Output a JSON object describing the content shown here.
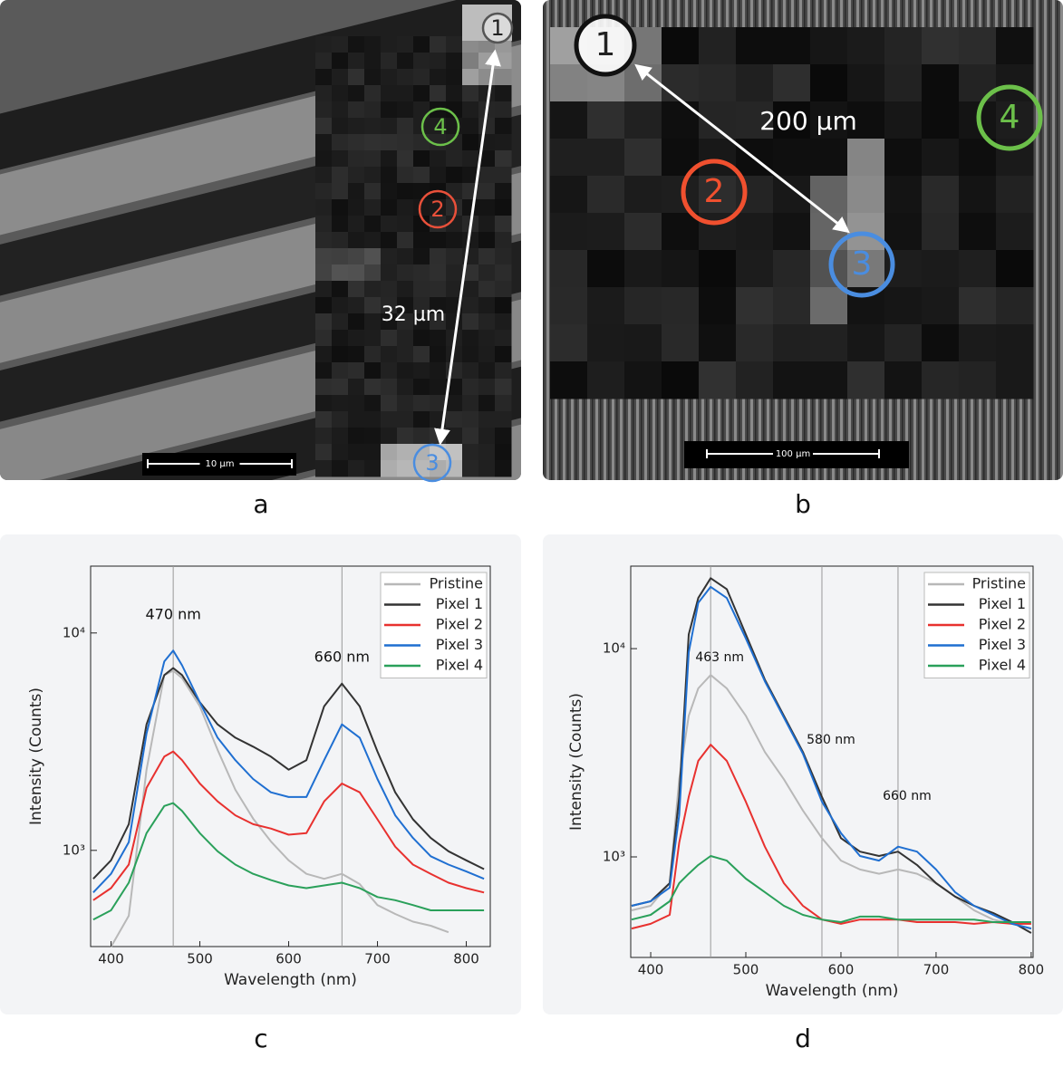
{
  "panels": [
    {
      "label": "a",
      "markers": [
        "1",
        "2",
        "3",
        "4"
      ],
      "distance": "32 µm",
      "scale_bar": "10 µm"
    },
    {
      "label": "b",
      "markers": [
        "1",
        "2",
        "3",
        "4"
      ],
      "distance": "200 µm",
      "scale_bar": "100 µm"
    }
  ],
  "chart_data": [
    {
      "type": "line",
      "panel_label": "c",
      "x_label": "Wavelength (nm)",
      "y_label": "Intensity (Counts)",
      "log_y": true,
      "legend": "upper right",
      "xlim": [
        377,
        827
      ],
      "ylim": [
        361,
        20300
      ],
      "xticks": [
        400,
        500,
        600,
        700,
        800
      ],
      "yticks": [
        {
          "value": 1000,
          "label": "10³"
        },
        {
          "value": 10000,
          "label": "10⁴"
        }
      ],
      "annotations": [
        {
          "text": "470 nm",
          "x": 470
        },
        {
          "text": "660 nm",
          "x": 660
        }
      ],
      "x": [
        380,
        400,
        420,
        440,
        460,
        470,
        480,
        500,
        520,
        540,
        560,
        580,
        600,
        620,
        640,
        660,
        680,
        700,
        720,
        740,
        760,
        780,
        800,
        820
      ],
      "series": [
        {
          "name": "Pristine",
          "color": "#b8b8b8",
          "values": [
            null,
            360,
            500,
            2350,
            6400,
            6700,
            6200,
            4600,
            2900,
            1900,
            1400,
            1100,
            900,
            780,
            740,
            780,
            700,
            560,
            510,
            470,
            450,
            420,
            null,
            null
          ]
        },
        {
          "name": "Pixel 1",
          "color": "#333333",
          "values": [
            740,
            900,
            1320,
            3800,
            6400,
            6900,
            6400,
            4800,
            3800,
            3300,
            3000,
            2700,
            2350,
            2600,
            4600,
            5850,
            4600,
            2850,
            1850,
            1390,
            1140,
            990,
            900,
            820
          ]
        },
        {
          "name": "Pixel 2",
          "color": "#e8312f",
          "values": [
            590,
            670,
            860,
            1940,
            2700,
            2850,
            2600,
            2030,
            1680,
            1450,
            1320,
            1260,
            1180,
            1200,
            1680,
            2030,
            1850,
            1390,
            1040,
            860,
            780,
            710,
            670,
            640
          ]
        },
        {
          "name": "Pixel 3",
          "color": "#1f6fd1",
          "values": [
            640,
            780,
            1090,
            3450,
            7400,
            8300,
            7100,
            4800,
            3300,
            2600,
            2130,
            1850,
            1760,
            1760,
            2600,
            3800,
            3300,
            2130,
            1450,
            1140,
            940,
            860,
            800,
            740
          ]
        },
        {
          "name": "Pixel 4",
          "color": "#2aa05a",
          "values": [
            480,
            530,
            710,
            1200,
            1600,
            1650,
            1520,
            1200,
            990,
            860,
            780,
            730,
            690,
            670,
            690,
            710,
            670,
            610,
            590,
            560,
            530,
            530,
            530,
            530
          ]
        }
      ]
    },
    {
      "type": "line",
      "panel_label": "d",
      "x_label": "Wavelength (nm)",
      "y_label": "Intensity (Counts)",
      "log_y": true,
      "legend": "upper right",
      "xlim": [
        379,
        802
      ],
      "ylim": [
        329,
        24900
      ],
      "xticks": [
        400,
        500,
        600,
        700,
        800
      ],
      "yticks": [
        {
          "value": 1000,
          "label": "10³"
        },
        {
          "value": 10000,
          "label": "10⁴"
        }
      ],
      "annotations": [
        {
          "text": "463 nm",
          "x": 463
        },
        {
          "text": "580 nm",
          "x": 580
        },
        {
          "text": "660 nm",
          "x": 660
        }
      ],
      "x": [
        380,
        400,
        420,
        430,
        440,
        450,
        463,
        480,
        500,
        520,
        540,
        560,
        580,
        600,
        620,
        640,
        660,
        680,
        700,
        720,
        740,
        760,
        780,
        800
      ],
      "series": [
        {
          "name": "Pristine",
          "color": "#b8b8b8",
          "values": [
            554,
            582,
            748,
            2360,
            4760,
            6440,
            7470,
            6440,
            4760,
            3190,
            2360,
            1670,
            1230,
            960,
            870,
            830,
            870,
            830,
            748,
            645,
            554,
            500,
            477,
            453
          ]
        },
        {
          "name": "Pixel 1",
          "color": "#333333",
          "values": [
            582,
            612,
            748,
            1940,
            11700,
            17500,
            21800,
            19300,
            11700,
            7100,
            4760,
            3190,
            1940,
            1230,
            1060,
            1010,
            1060,
            915,
            748,
            645,
            582,
            538,
            486,
            431
          ]
        },
        {
          "name": "Pixel 2",
          "color": "#e8312f",
          "values": [
            453,
            477,
            527,
            1170,
            1940,
            2890,
            3460,
            2890,
            1840,
            1120,
            748,
            582,
            500,
            477,
            500,
            500,
            500,
            486,
            486,
            486,
            477,
            486,
            477,
            477
          ]
        },
        {
          "name": "Pixel 3",
          "color": "#1f6fd1",
          "values": [
            582,
            612,
            712,
            1590,
            9600,
            16600,
            19800,
            17500,
            11200,
            6970,
            4670,
            3130,
            1840,
            1300,
            1010,
            960,
            1120,
            1060,
            870,
            677,
            582,
            527,
            477,
            453
          ]
        },
        {
          "name": "Pixel 4",
          "color": "#2aa05a",
          "values": [
            500,
            527,
            612,
            748,
            830,
            915,
            1010,
            960,
            786,
            677,
            582,
            527,
            500,
            486,
            517,
            517,
            500,
            500,
            500,
            500,
            500,
            486,
            486,
            486
          ]
        }
      ]
    }
  ]
}
